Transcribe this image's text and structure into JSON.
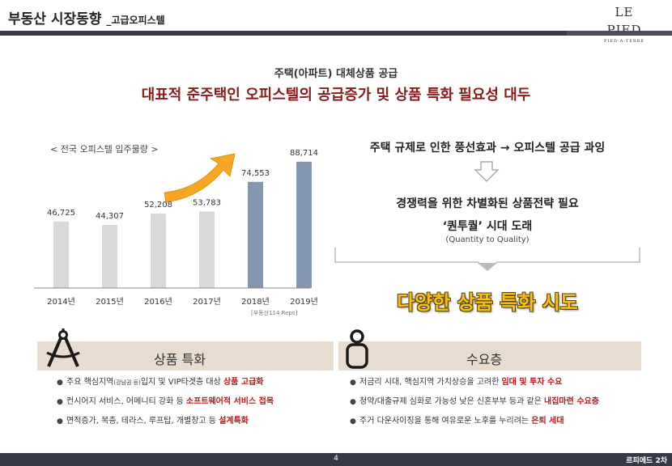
{
  "header": {
    "title": "부동산 시장동향",
    "subtitle": "_고급오피스텔",
    "logo_main": "LE PIED",
    "logo_sub": "PIED-A-TERRE"
  },
  "pre_title": "주택(아파트) 대체상품 공급",
  "main_title": "대표적 준주택인 오피스텔의 공급증가 및 상품 특화 필요성 대두",
  "chart": {
    "label": "< 전국 오피스텔 입주물량 >",
    "source": "[부동산114 Reps]"
  },
  "chart_data": {
    "type": "bar",
    "title": "< 전국 오피스텔 입주물량 >",
    "categories": [
      "2014년",
      "2015년",
      "2016년",
      "2017년",
      "2018년",
      "2019년"
    ],
    "values": [
      46725,
      44307,
      52208,
      53783,
      74553,
      88714
    ],
    "value_labels": [
      "46,725",
      "44,307",
      "52,208",
      "53,783",
      "74,553",
      "88,714"
    ],
    "highlight_from_index": 4,
    "colors": {
      "normal": "#d9d9d9",
      "highlight": "#8496b0",
      "arrow": "#f5a623"
    },
    "ylim": [
      0,
      100000
    ],
    "grid": false
  },
  "right": {
    "line1": "주택 규제로 인한 풍선효과 → 오피스텔 공급 과잉",
    "line2": "경쟁력을 위한 차별화된 상품전략 필요",
    "line3": "‘퀀투퀄’ 시대 도래",
    "line4": "(Quantity to Quality)",
    "highlight": "다양한 상품 특화 시도"
  },
  "left_panel": {
    "title": "상품 특화",
    "bullets": [
      {
        "a": "주요 핵심지역",
        "small": "(강남권 등)",
        "b": "입지 및 VIP타겟층 대상 ",
        "hl": "상품 고급화"
      },
      {
        "a": "컨시어지 서비스, 어메니티 강화 등 ",
        "hl": "소프트웨어적 서비스 접목"
      },
      {
        "a": "면적증가, 복층, 테라스, 루프탑, 개별창고 등 ",
        "hl": "설계특화"
      }
    ]
  },
  "right_panel": {
    "title": "수요층",
    "bullets": [
      {
        "a": "저금리 시대, 핵심지역 가치상승을 고려한 ",
        "hl": "임대 및 투자 수요"
      },
      {
        "a": "청약/대출규제 심화로 가능성 낮은 신혼부부 등과 같은 ",
        "hl": "내집마련 수요층"
      },
      {
        "a": "주거 다운사이징을 통해 여유로운 노후를 누리려는 ",
        "hl": "은퇴 세대"
      }
    ]
  },
  "footer": {
    "page": "4",
    "text": "르피에드 2차"
  }
}
